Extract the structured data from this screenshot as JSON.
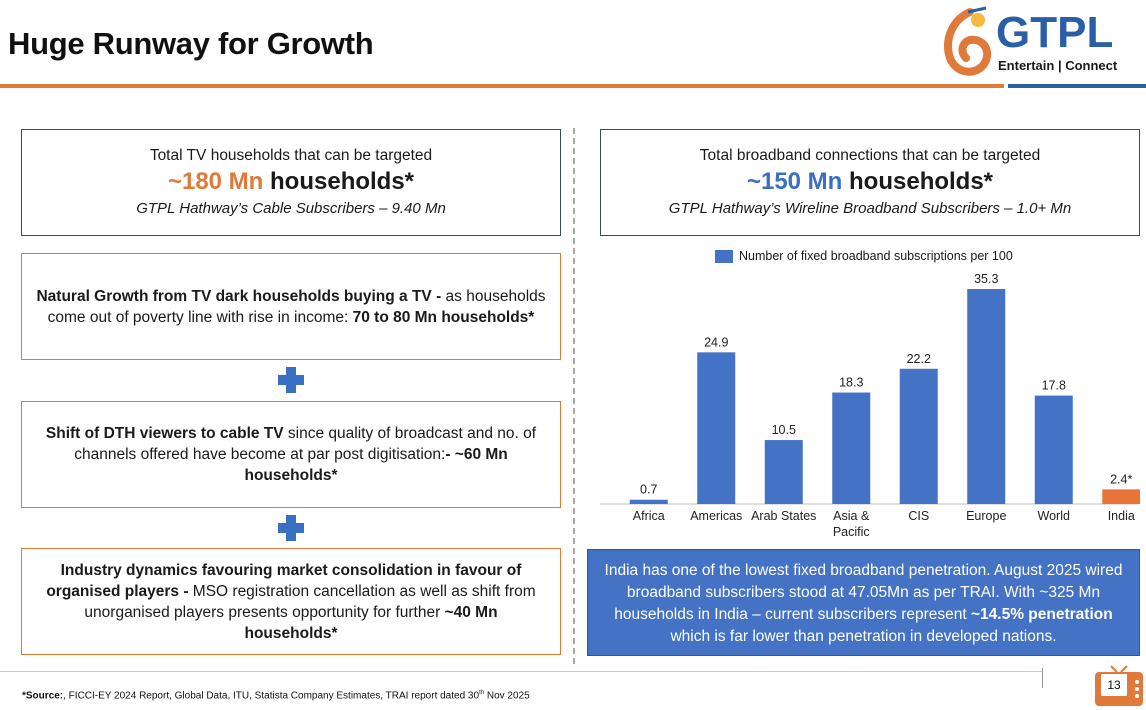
{
  "title": "Huge Runway for Growth",
  "logo": {
    "brand": "GTPL",
    "tagline": "Entertain | Connect"
  },
  "tv": {
    "line1": "Total TV households that can be targeted",
    "highlight": "~180 Mn",
    "unit": " households*",
    "subline": "GTPL Hathway’s Cable Subscribers – 9.40 Mn"
  },
  "broadband": {
    "line1": "Total broadband connections that can be targeted",
    "highlight": "~150 Mn",
    "unit": " households*",
    "subline": "GTPL Hathway’s Wireline Broadband Subscribers – 1.0+ Mn"
  },
  "drivers": [
    {
      "bold": "Natural Growth from TV dark households buying a TV -",
      "text": " as households come out of poverty line with rise in income: ",
      "tail_bold": "70 to 80 Mn households*"
    },
    {
      "bold": "Shift of DTH viewers to cable TV",
      "text": " since quality of broadcast and no. of channels offered have become at par post digitisation:",
      "tail_bold": "- ~60 Mn households*"
    },
    {
      "bold": "Industry dynamics favouring market consolidation in favour of organised players -",
      "text": " MSO registration cancellation as well as shift from unorganised players presents opportunity for further ",
      "tail_bold": "~40 Mn households*"
    }
  ],
  "chart_data": {
    "type": "bar",
    "legend": "Number of fixed broadband subscriptions per 100",
    "categories": [
      "Africa",
      "Americas",
      "Arab States",
      "Asia & Pacific",
      "CIS",
      "Europe",
      "World",
      "India"
    ],
    "values": [
      0.7,
      24.9,
      10.5,
      18.3,
      22.2,
      35.3,
      17.8,
      2.4
    ],
    "data_labels": [
      "0.7",
      "24.9",
      "10.5",
      "18.3",
      "22.2",
      "35.3",
      "17.8",
      "2.4*"
    ],
    "ylim": [
      0,
      35.3
    ],
    "colors": {
      "default": "#4472c4",
      "highlight": "#e9743a"
    },
    "highlight_index": 7
  },
  "info": {
    "text": "India has one of the lowest fixed broadband penetration. August 2025 wired broadband subscribers stood at 47.05Mn as per TRAI. With ~325 Mn households in India – current subscribers represent ",
    "bold": "~14.5% penetration",
    "tail": " which is far lower than penetration in developed nations."
  },
  "footer": {
    "source_label": "*Source:",
    "source_text": ", FICCI-EY 2024 Report, Global Data, ITU, Statista Company Estimates, TRAI report dated 30",
    "source_sup": "th",
    "source_tail": " Nov 2025",
    "page": "13"
  }
}
